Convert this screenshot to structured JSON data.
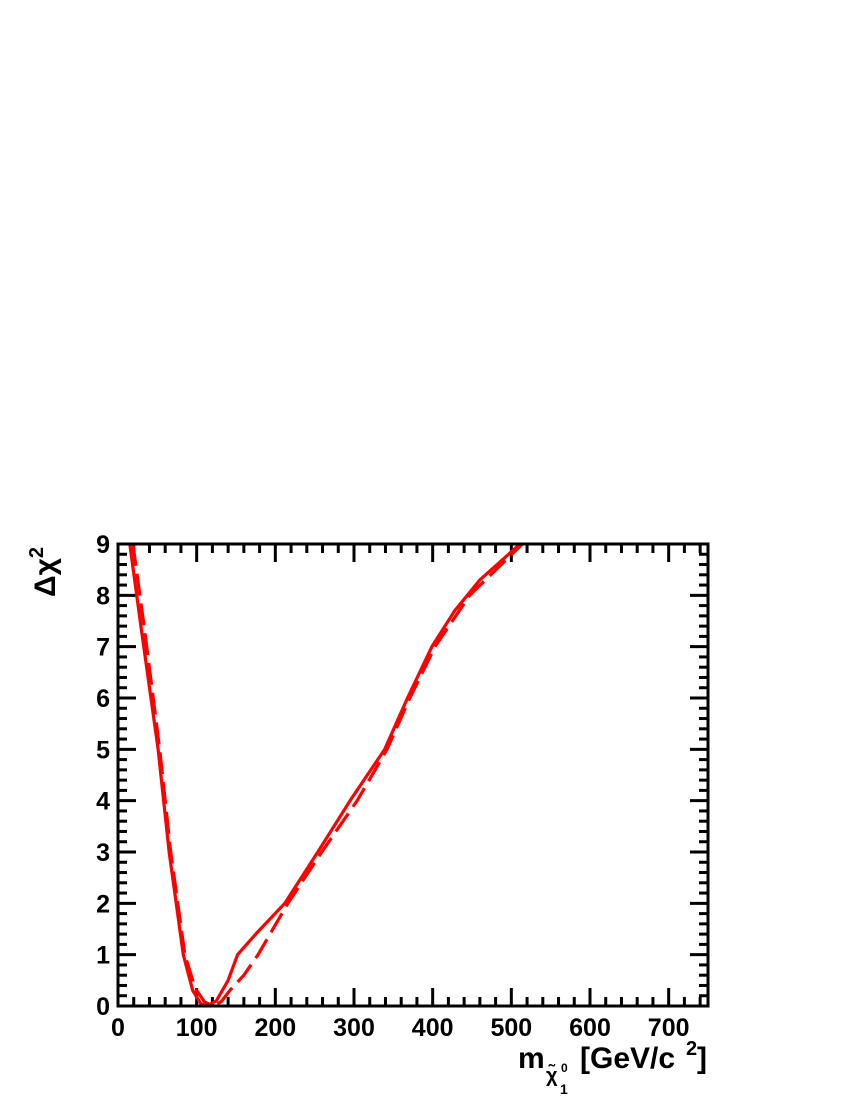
{
  "chart_data": {
    "type": "line",
    "ylabel": {
      "base": "Δχ",
      "sup": "2"
    },
    "xlabel": {
      "base": "m",
      "sub": "χ̃",
      "sub_sup": "0",
      "sub_sub": "1",
      "unit": "[GeV/c",
      "unit_sup": "2",
      "unit_end": "]"
    },
    "xlim": [
      0,
      750
    ],
    "ylim": [
      0,
      9
    ],
    "xticks": [
      0,
      100,
      200,
      300,
      400,
      500,
      600,
      700
    ],
    "yticks": [
      0,
      1,
      2,
      3,
      4,
      5,
      6,
      7,
      8,
      9
    ],
    "xminorticks": [
      20,
      40,
      60,
      80,
      120,
      140,
      160,
      180,
      220,
      240,
      260,
      280,
      320,
      340,
      360,
      380,
      420,
      440,
      460,
      480,
      520,
      540,
      560,
      580,
      620,
      640,
      660,
      680,
      720,
      740
    ],
    "yminorticks": [
      0.2,
      0.4,
      0.6,
      0.8,
      1.2,
      1.4,
      1.6,
      1.8,
      2.2,
      2.4,
      2.6,
      2.8,
      3.2,
      3.4,
      3.6,
      3.8,
      4.2,
      4.4,
      4.6,
      4.8,
      5.2,
      5.4,
      5.6,
      5.8,
      6.2,
      6.4,
      6.6,
      6.8,
      7.2,
      7.4,
      7.6,
      7.8,
      8.2,
      8.4,
      8.6,
      8.8
    ],
    "series": [
      {
        "color": "#ff0000",
        "dash": "solid",
        "x": [
          15,
          30,
          51,
          65,
          83,
          95,
          105,
          113,
          125,
          140,
          152,
          175,
          212,
          254,
          295,
          339,
          368,
          399,
          428,
          460,
          511
        ],
        "values": [
          9,
          7.3,
          5,
          3,
          1,
          0.3,
          0.05,
          0,
          0.1,
          0.5,
          1,
          1.4,
          2,
          3,
          4,
          5,
          6,
          7,
          7.7,
          8.3,
          9
        ]
      },
      {
        "color": "#ff0000",
        "dash": "dashed",
        "x": [
          19,
          34,
          53,
          67,
          85,
          98,
          110,
          121,
          131,
          142,
          160,
          178,
          216,
          259,
          304,
          342,
          371,
          403,
          447,
          514
        ],
        "values": [
          9,
          7.3,
          5,
          3,
          1,
          0.35,
          0.08,
          0,
          0.08,
          0.3,
          0.6,
          1,
          2,
          3,
          4,
          5,
          6,
          7,
          8,
          9
        ]
      }
    ]
  }
}
